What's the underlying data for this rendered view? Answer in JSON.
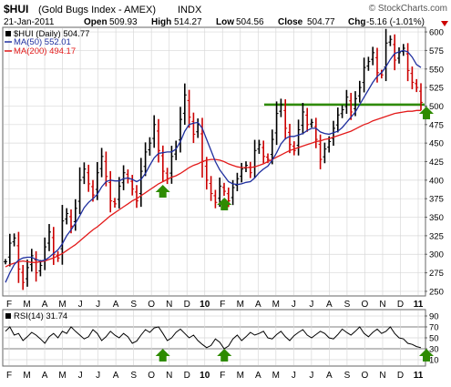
{
  "header": {
    "symbol": "$HUI",
    "name": "(Gold Bugs Index - AMEX)",
    "exchange": "INDX",
    "watermark": "© StockCharts.com",
    "date": "21-Jan-2011",
    "open_label": "Open",
    "open": "509.93",
    "high_label": "High",
    "high": "514.27",
    "low_label": "Low",
    "low": "504.56",
    "close_label": "Close",
    "close": "504.77",
    "chg_label": "Chg",
    "chg": "-5.16 (-1.01%)"
  },
  "legend": {
    "price": "$HUI (Daily) 504.77",
    "ma50": "MA(50) 552.01",
    "ma200": "MA(200) 494.17"
  },
  "rsi_legend": "RSI(14) 31.74",
  "colors": {
    "price_up": "#000000",
    "price_down": "#cc0000",
    "ma50": "#1f2f9f",
    "ma200": "#e31a1a",
    "support": "#2e8b00",
    "arrow": "#2e8b00",
    "grid": "#d8d8d8"
  },
  "chart_data": [
    {
      "type": "line",
      "panel": "price",
      "title": "$HUI (Gold Bugs Index - AMEX) INDX",
      "y_ticks": [
        250,
        275,
        300,
        325,
        350,
        375,
        400,
        425,
        450,
        475,
        500,
        525,
        550,
        575,
        600
      ],
      "ylim": [
        245,
        605
      ],
      "x_labels": [
        "F",
        "M",
        "A",
        "M",
        "J",
        "J",
        "A",
        "S",
        "O",
        "N",
        "D",
        "10",
        "F",
        "M",
        "A",
        "M",
        "J",
        "J",
        "A",
        "S",
        "O",
        "N",
        "D",
        "11"
      ],
      "grid": true,
      "series": [
        {
          "name": "$HUI (Daily)",
          "style": "ohlc_bars",
          "values": [
            290,
            315,
            322,
            280,
            262,
            282,
            298,
            275,
            285,
            310,
            330,
            300,
            295,
            345,
            355,
            338,
            362,
            400,
            415,
            395,
            380,
            410,
            432,
            405,
            372,
            368,
            392,
            410,
            402,
            388,
            372,
            412,
            438,
            450,
            475,
            440,
            412,
            402,
            432,
            445,
            482,
            515,
            485,
            462,
            475,
            425,
            400,
            382,
            370,
            392,
            385,
            372,
            390,
            402,
            415,
            420,
            410,
            440,
            448,
            432,
            428,
            455,
            490,
            502,
            470,
            448,
            440,
            468,
            492,
            475,
            478,
            455,
            428,
            442,
            452,
            470,
            488,
            495,
            512,
            492,
            510,
            525,
            552,
            560,
            572,
            545,
            542,
            585,
            590,
            562,
            572,
            578,
            548,
            532,
            525,
            505
          ]
        },
        {
          "name": "MA(50)",
          "values": [
            262,
            275,
            286,
            292,
            295,
            296,
            296,
            293,
            291,
            292,
            296,
            301,
            306,
            314,
            325,
            333,
            342,
            352,
            363,
            370,
            375,
            381,
            391,
            398,
            400,
            399,
            399,
            402,
            403,
            401,
            398,
            401,
            409,
            420,
            430,
            436,
            437,
            438,
            438,
            442,
            452,
            466,
            475,
            477,
            478,
            470,
            455,
            440,
            425,
            414,
            406,
            398,
            395,
            394,
            395,
            397,
            398,
            403,
            410,
            415,
            419,
            427,
            437,
            449,
            456,
            459,
            459,
            461,
            463,
            467,
            470,
            470,
            465,
            463,
            462,
            464,
            466,
            471,
            478,
            485,
            492,
            502,
            512,
            522,
            532,
            540,
            545,
            553,
            563,
            571,
            573,
            575,
            573,
            566,
            556,
            552
          ]
        },
        {
          "name": "MA(200)",
          "values": [
            283,
            286,
            288,
            290,
            291,
            290,
            289,
            289,
            290,
            291,
            293,
            295,
            298,
            301,
            305,
            309,
            313,
            318,
            323,
            328,
            333,
            337,
            342,
            347,
            352,
            356,
            360,
            364,
            368,
            372,
            375,
            379,
            383,
            387,
            391,
            395,
            398,
            401,
            404,
            406,
            409,
            413,
            417,
            420,
            422,
            425,
            427,
            428,
            428,
            427,
            425,
            422,
            420,
            418,
            417,
            417,
            417,
            418,
            420,
            422,
            425,
            428,
            431,
            434,
            437,
            440,
            442,
            444,
            446,
            448,
            450,
            452,
            453,
            455,
            456,
            458,
            460,
            462,
            464,
            466,
            469,
            472,
            475,
            477,
            480,
            482,
            484,
            486,
            488,
            490,
            491,
            492,
            493,
            493,
            494,
            494
          ]
        }
      ],
      "annotations": {
        "support_line": 502,
        "up_arrows_at_month_labels": [
          "N",
          "F",
          "11"
        ]
      }
    },
    {
      "type": "line",
      "panel": "rsi",
      "title": "RSI(14) 31.74",
      "y_ticks": [
        10,
        30,
        50,
        70,
        90
      ],
      "ylim": [
        0,
        100
      ],
      "reference_lines": [
        30,
        70
      ],
      "x_labels": [
        "F",
        "M",
        "A",
        "M",
        "J",
        "J",
        "A",
        "S",
        "O",
        "N",
        "D",
        "10",
        "F",
        "M",
        "A",
        "M",
        "J",
        "J",
        "A",
        "S",
        "O",
        "N",
        "D",
        "11"
      ],
      "grid": true,
      "series": [
        {
          "name": "RSI(14)",
          "values": [
            62,
            70,
            55,
            58,
            45,
            52,
            60,
            55,
            48,
            40,
            52,
            58,
            50,
            62,
            58,
            70,
            62,
            55,
            48,
            52,
            65,
            58,
            45,
            52,
            62,
            55,
            50,
            58,
            52,
            40,
            44,
            55,
            65,
            60,
            68,
            70,
            58,
            45,
            50,
            60,
            66,
            58,
            50,
            55,
            45,
            38,
            32,
            36,
            48,
            42,
            30,
            35,
            48,
            55,
            45,
            52,
            60,
            55,
            58,
            62,
            50,
            48,
            56,
            62,
            52,
            45,
            54,
            60,
            65,
            55,
            50,
            56,
            62,
            58,
            50,
            48,
            56,
            66,
            60,
            55,
            62,
            70,
            58,
            52,
            60,
            66,
            58,
            62,
            70,
            58,
            50,
            48,
            40,
            38,
            34,
            32
          ]
        }
      ],
      "annotations": {
        "up_arrows_at_month_labels": [
          "N",
          "F",
          "11"
        ]
      }
    }
  ]
}
